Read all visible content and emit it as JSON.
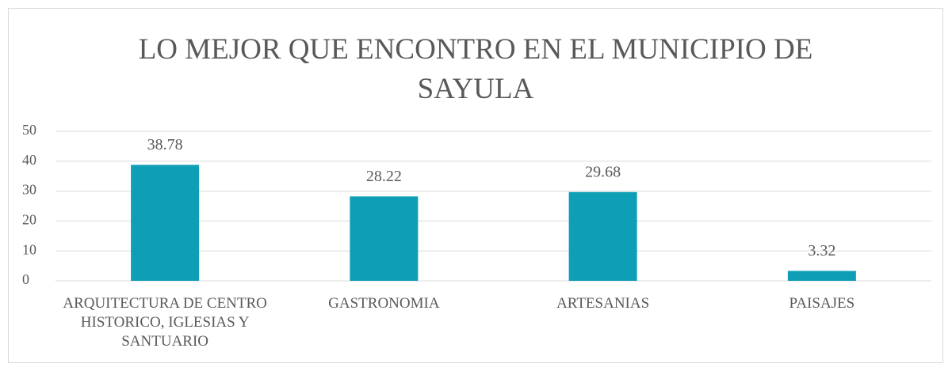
{
  "chart_data": {
    "type": "bar",
    "title": "LO MEJOR QUE ENCONTRO EN EL MUNICIPIO DE SAYULA",
    "categories": [
      "ARQUITECTURA DE CENTRO HISTORICO, IGLESIAS Y SANTUARIO",
      "GASTRONOMIA",
      "ARTESANIAS",
      "PAISAJES"
    ],
    "values": [
      38.78,
      28.22,
      29.68,
      3.32
    ],
    "color": "#0e9fb6",
    "ylim": [
      0,
      50
    ],
    "yticks": [
      0,
      10,
      20,
      30,
      40,
      50
    ],
    "grid": true
  }
}
